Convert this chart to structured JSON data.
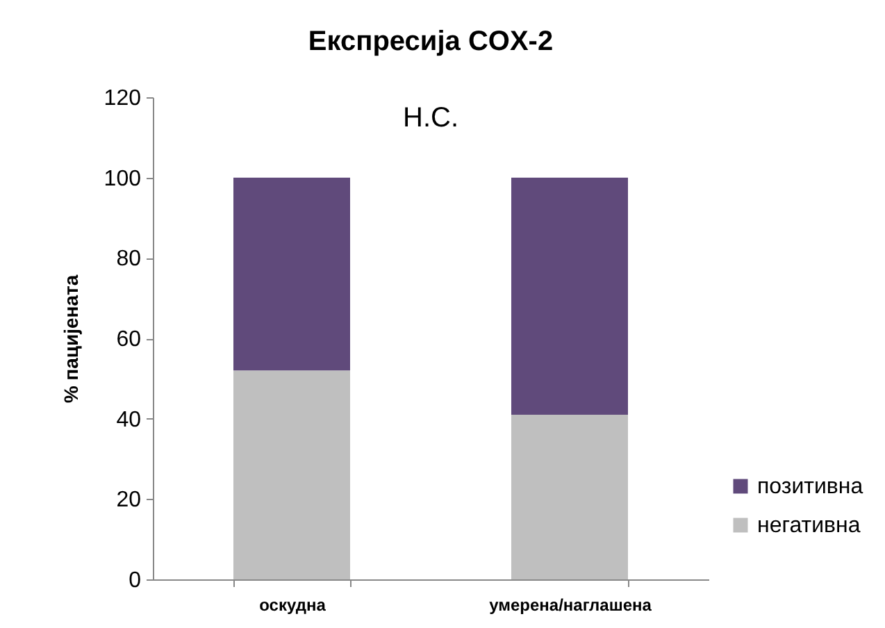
{
  "chart_data": {
    "type": "bar",
    "title": "Експресија COX-2",
    "ylabel": "% пацијената",
    "categories": [
      "оскудна",
      "умерена/наглашена"
    ],
    "stacked": true,
    "series": [
      {
        "name": "негативна",
        "color": "#bfbfbf",
        "values": [
          52,
          41
        ]
      },
      {
        "name": "позитивна",
        "color": "#604a7b",
        "values": [
          48,
          59
        ]
      }
    ],
    "ylim": [
      0,
      120
    ],
    "yticks": [
      0,
      20,
      40,
      60,
      80,
      100,
      120
    ],
    "legend": "bottom right",
    "annotations": [
      "Н.С."
    ]
  }
}
